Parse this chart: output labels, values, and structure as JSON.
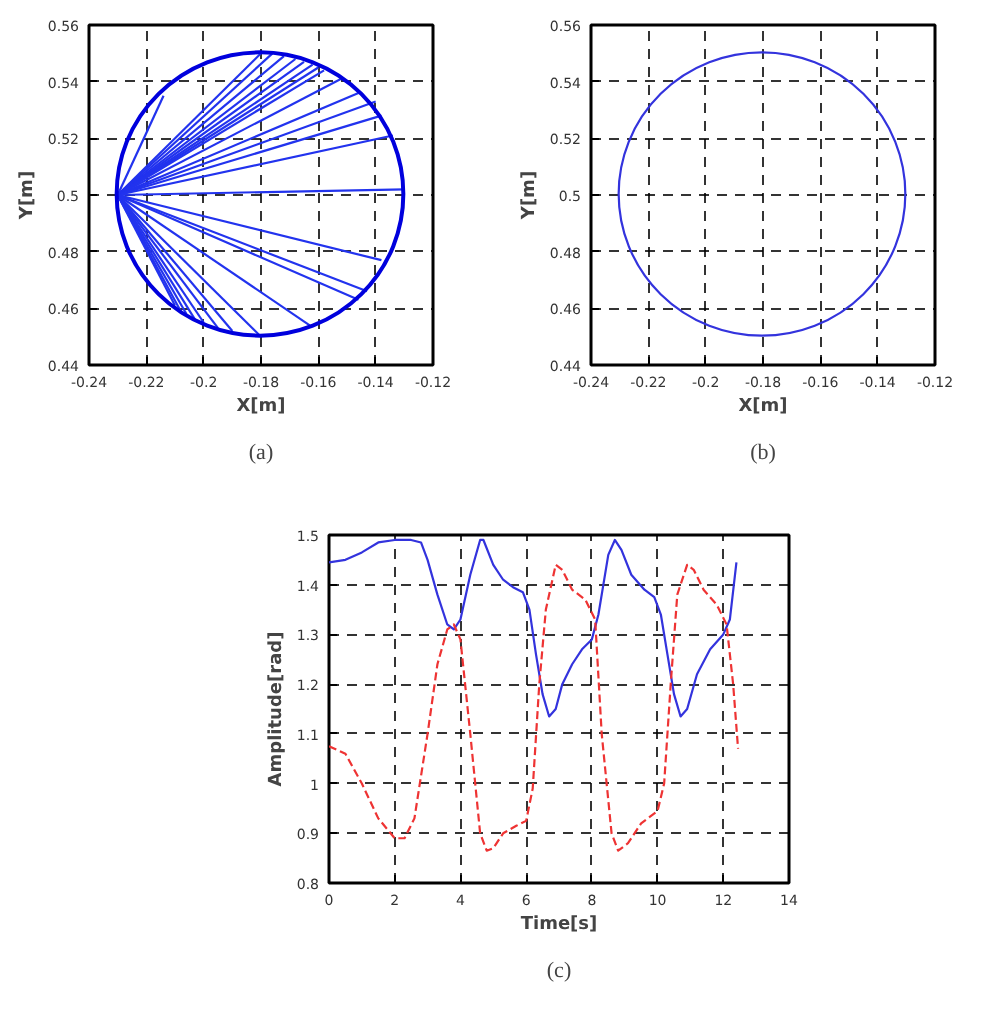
{
  "chart_data": [
    {
      "type": "line",
      "xlabel": "X[m]",
      "ylabel": "Y[m]",
      "xlim": [
        -0.24,
        -0.12
      ],
      "ylim": [
        0.44,
        0.56
      ],
      "xticks": [
        -0.24,
        -0.22,
        -0.2,
        -0.18,
        -0.16,
        -0.14,
        -0.12
      ],
      "yticks": [
        0.44,
        0.46,
        0.48,
        0.5,
        0.52,
        0.54,
        0.56
      ],
      "grid": true,
      "annotations": [
        "(a)"
      ],
      "series": [
        {
          "color": "#2233ee",
          "x": [
            -0.23,
            -0.18
          ],
          "values": [
            0.5,
            0.55
          ]
        },
        {
          "color": "#2233ee",
          "x": [
            -0.23,
            -0.176
          ],
          "values": [
            0.5,
            0.55
          ]
        },
        {
          "color": "#2233ee",
          "x": [
            -0.23,
            -0.172
          ],
          "values": [
            0.5,
            0.549
          ]
        },
        {
          "color": "#2233ee",
          "x": [
            -0.23,
            -0.168
          ],
          "values": [
            0.5,
            0.548
          ]
        },
        {
          "color": "#2233ee",
          "x": [
            -0.23,
            -0.165
          ],
          "values": [
            0.5,
            0.547
          ]
        },
        {
          "color": "#2233ee",
          "x": [
            -0.23,
            -0.162
          ],
          "values": [
            0.5,
            0.546
          ]
        },
        {
          "color": "#2233ee",
          "x": [
            -0.23,
            -0.16
          ],
          "values": [
            0.5,
            0.545
          ]
        },
        {
          "color": "#2233ee",
          "x": [
            -0.23,
            -0.158
          ],
          "values": [
            0.5,
            0.544
          ]
        },
        {
          "color": "#2233ee",
          "x": [
            -0.23,
            -0.152
          ],
          "values": [
            0.5,
            0.541
          ]
        },
        {
          "color": "#2233ee",
          "x": [
            -0.23,
            -0.146
          ],
          "values": [
            0.5,
            0.536
          ]
        },
        {
          "color": "#2233ee",
          "x": [
            -0.23,
            -0.14
          ],
          "values": [
            0.5,
            0.533
          ]
        },
        {
          "color": "#2233ee",
          "x": [
            -0.23,
            -0.138
          ],
          "values": [
            0.5,
            0.528
          ]
        },
        {
          "color": "#2233ee",
          "x": [
            -0.23,
            -0.134
          ],
          "values": [
            0.5,
            0.521
          ]
        },
        {
          "color": "#2233ee",
          "x": [
            -0.23,
            -0.13
          ],
          "values": [
            0.5,
            0.502
          ]
        },
        {
          "color": "#2233ee",
          "x": [
            -0.23,
            -0.214
          ],
          "values": [
            0.5,
            0.535
          ]
        },
        {
          "color": "#2233ee",
          "x": [
            -0.23,
            -0.138
          ],
          "values": [
            0.5,
            0.477
          ]
        },
        {
          "color": "#2233ee",
          "x": [
            -0.23,
            -0.143
          ],
          "values": [
            0.5,
            0.466
          ]
        },
        {
          "color": "#2233ee",
          "x": [
            -0.23,
            -0.146
          ],
          "values": [
            0.5,
            0.463
          ]
        },
        {
          "color": "#2233ee",
          "x": [
            -0.23,
            -0.163
          ],
          "values": [
            0.5,
            0.454
          ]
        },
        {
          "color": "#2233ee",
          "x": [
            -0.23,
            -0.18
          ],
          "values": [
            0.5,
            0.45
          ]
        },
        {
          "color": "#2233ee",
          "x": [
            -0.23,
            -0.19
          ],
          "values": [
            0.5,
            0.452
          ]
        },
        {
          "color": "#2233ee",
          "x": [
            -0.23,
            -0.195
          ],
          "values": [
            0.5,
            0.453
          ]
        },
        {
          "color": "#2233ee",
          "x": [
            -0.23,
            -0.2
          ],
          "values": [
            0.5,
            0.455
          ]
        },
        {
          "color": "#2233ee",
          "x": [
            -0.23,
            -0.203
          ],
          "values": [
            0.5,
            0.456
          ]
        },
        {
          "color": "#2233ee",
          "x": [
            -0.23,
            -0.206
          ],
          "values": [
            0.5,
            0.458
          ]
        },
        {
          "color": "#2233ee",
          "x": [
            -0.23,
            -0.208
          ],
          "values": [
            0.5,
            0.459
          ]
        },
        {
          "color": "#2233ee",
          "x": [
            -0.23,
            -0.21
          ],
          "values": [
            0.5,
            0.461
          ]
        }
      ]
    },
    {
      "type": "line",
      "xlabel": "X[m]",
      "ylabel": "Y[m]",
      "xlim": [
        -0.24,
        -0.12
      ],
      "ylim": [
        0.44,
        0.56
      ],
      "xticks": [
        -0.24,
        -0.22,
        -0.2,
        -0.18,
        -0.16,
        -0.14,
        -0.12
      ],
      "yticks": [
        0.44,
        0.46,
        0.48,
        0.5,
        0.52,
        0.54,
        0.56
      ],
      "grid": true,
      "annotations": [
        "(b)"
      ]
    },
    {
      "type": "line",
      "xlabel": "Time[s]",
      "ylabel": "Amplitude[rad]",
      "xlim": [
        0,
        14
      ],
      "ylim": [
        0.8,
        1.5
      ],
      "xticks": [
        0,
        2,
        4,
        6,
        8,
        10,
        12,
        14
      ],
      "yticks": [
        0.8,
        0.9,
        1,
        1.1,
        1.2,
        1.3,
        1.4,
        1.5
      ],
      "grid": true,
      "annotations": [
        "(c)"
      ],
      "series": [
        {
          "color": "#3333dd",
          "line_style": "solid",
          "x": [
            0,
            0.5,
            1,
            1.5,
            2,
            2.5,
            2.8,
            3,
            3.3,
            3.6,
            3.8,
            4,
            4.3,
            4.6,
            4.7,
            5,
            5.3,
            5.6,
            5.9,
            6.1,
            6.3,
            6.5,
            6.7,
            6.9,
            7.1,
            7.4,
            7.7,
            8,
            8.2,
            8.5,
            8.7,
            8.9,
            9.2,
            9.6,
            9.9,
            10.1,
            10.3,
            10.5,
            10.7,
            10.9,
            11.2,
            11.6,
            12,
            12.2,
            12.4
          ],
          "values": [
            1.445,
            1.45,
            1.465,
            1.485,
            1.49,
            1.49,
            1.485,
            1.45,
            1.38,
            1.32,
            1.31,
            1.33,
            1.42,
            1.49,
            1.49,
            1.44,
            1.41,
            1.395,
            1.385,
            1.35,
            1.26,
            1.18,
            1.135,
            1.15,
            1.2,
            1.24,
            1.27,
            1.29,
            1.34,
            1.46,
            1.49,
            1.47,
            1.42,
            1.39,
            1.375,
            1.34,
            1.26,
            1.18,
            1.135,
            1.15,
            1.22,
            1.27,
            1.3,
            1.33,
            1.445
          ]
        },
        {
          "color": "#ee3333",
          "line_style": "dashed",
          "x": [
            0,
            0.5,
            1,
            1.5,
            2,
            2.3,
            2.6,
            3,
            3.3,
            3.6,
            3.8,
            4,
            4.3,
            4.6,
            4.8,
            5,
            5.3,
            5.7,
            6,
            6.2,
            6.4,
            6.6,
            6.9,
            7.1,
            7.4,
            7.8,
            8.1,
            8.3,
            8.6,
            8.8,
            9.1,
            9.5,
            10,
            10.2,
            10.4,
            10.6,
            10.9,
            11.1,
            11.4,
            11.8,
            12.1,
            12.3,
            12.45
          ],
          "values": [
            1.075,
            1.06,
            1.0,
            0.93,
            0.89,
            0.89,
            0.93,
            1.1,
            1.24,
            1.31,
            1.32,
            1.29,
            1.1,
            0.9,
            0.865,
            0.87,
            0.9,
            0.915,
            0.925,
            0.99,
            1.2,
            1.35,
            1.44,
            1.43,
            1.39,
            1.37,
            1.33,
            1.1,
            0.9,
            0.865,
            0.88,
            0.92,
            0.945,
            1.0,
            1.2,
            1.38,
            1.44,
            1.43,
            1.39,
            1.36,
            1.32,
            1.2,
            1.07
          ]
        }
      ]
    }
  ]
}
